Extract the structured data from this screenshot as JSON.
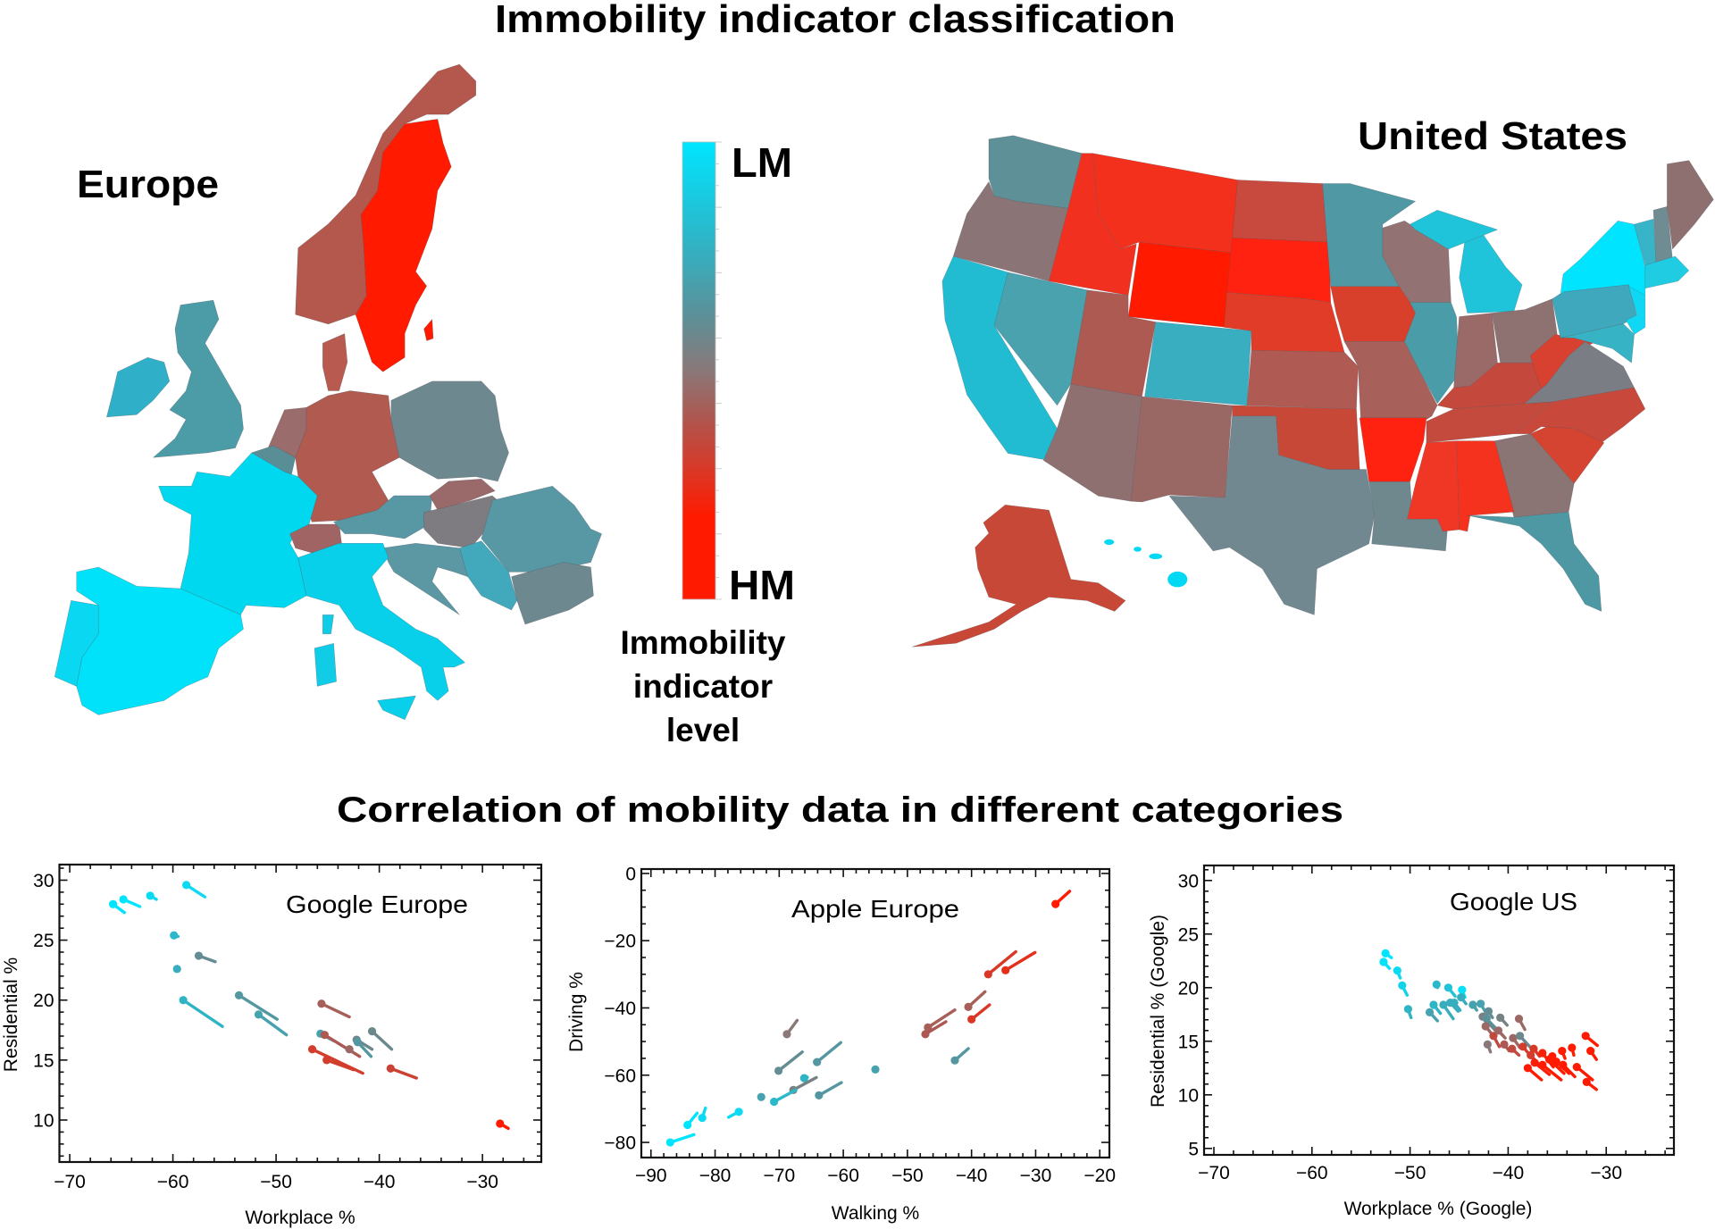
{
  "header": {
    "title": "Immobility indicator classification"
  },
  "maps": {
    "europe_label": "Europe",
    "us_label": "United States"
  },
  "legend": {
    "top_label": "LM",
    "bottom_label": "HM",
    "caption_lines": [
      "Immobility",
      "indicator",
      "level"
    ],
    "colors": [
      "#00e5ff",
      "#2fb4c6",
      "#5c9098",
      "#8a7878",
      "#b4524a",
      "#e2321e",
      "#ff1a00"
    ]
  },
  "section2": {
    "title": "Correlation of mobility data in different categories"
  },
  "chart_data": [
    {
      "type": "scatter",
      "title": "Google Europe",
      "xlabel": "Workplace %",
      "ylabel": "Residential %",
      "xlim": [
        -71,
        -24.3
      ],
      "ylim": [
        6.5,
        31.3
      ],
      "xticks": [
        -70,
        -60,
        -50,
        -40,
        -30
      ],
      "yticks": [
        10,
        15,
        20,
        25,
        30
      ],
      "grid": false,
      "points": [
        {
          "x": -65.8,
          "y": 28.0,
          "x_end": -64.7,
          "y_end": 27.3,
          "level": 0.0
        },
        {
          "x": -64.8,
          "y": 28.4,
          "x_end": -63.2,
          "y_end": 27.8,
          "level": 0.0
        },
        {
          "x": -62.2,
          "y": 28.7,
          "x_end": -61.6,
          "y_end": 28.4,
          "level": 0.05
        },
        {
          "x": -58.7,
          "y": 29.6,
          "x_end": -56.9,
          "y_end": 28.6,
          "level": 0.05
        },
        {
          "x": -59.9,
          "y": 25.4,
          "x_end": -59.5,
          "y_end": 25.3,
          "level": 0.2
        },
        {
          "x": -57.5,
          "y": 23.7,
          "x_end": -55.9,
          "y_end": 23.2,
          "level": 0.4
        },
        {
          "x": -59.6,
          "y": 22.6,
          "x_end": -59.6,
          "y_end": 22.6,
          "level": 0.25
        },
        {
          "x": -59.0,
          "y": 20.0,
          "x_end": -55.2,
          "y_end": 17.8,
          "level": 0.22
        },
        {
          "x": -53.6,
          "y": 20.4,
          "x_end": -49.9,
          "y_end": 18.4,
          "level": 0.35
        },
        {
          "x": -51.7,
          "y": 18.8,
          "x_end": -49.0,
          "y_end": 17.1,
          "level": 0.3
        },
        {
          "x": -45.6,
          "y": 19.7,
          "x_end": -42.9,
          "y_end": 18.6,
          "level": 0.58
        },
        {
          "x": -45.7,
          "y": 17.2,
          "x_end": -44.4,
          "y_end": 16.6,
          "level": 0.3
        },
        {
          "x": -45.3,
          "y": 17.1,
          "x_end": -41.9,
          "y_end": 15.3,
          "level": 0.6
        },
        {
          "x": -42.2,
          "y": 16.7,
          "x_end": -40.7,
          "y_end": 15.9,
          "level": 0.42
        },
        {
          "x": -42.1,
          "y": 16.5,
          "x_end": -40.8,
          "y_end": 15.3,
          "level": 0.35
        },
        {
          "x": -42.9,
          "y": 15.9,
          "x_end": -42.6,
          "y_end": 15.7,
          "level": 0.55
        },
        {
          "x": -40.7,
          "y": 17.4,
          "x_end": -38.8,
          "y_end": 15.9,
          "level": 0.42
        },
        {
          "x": -46.5,
          "y": 15.9,
          "x_end": -41.6,
          "y_end": 13.9,
          "level": 0.7
        },
        {
          "x": -45.1,
          "y": 15.0,
          "x_end": -42.5,
          "y_end": 14.2,
          "level": 0.7
        },
        {
          "x": -38.9,
          "y": 14.3,
          "x_end": -36.4,
          "y_end": 13.5,
          "level": 0.68
        },
        {
          "x": -28.3,
          "y": 9.7,
          "x_end": -27.5,
          "y_end": 9.3,
          "level": 1.0
        }
      ]
    },
    {
      "type": "scatter",
      "title": "Apple Europe",
      "xlabel": "Walking %",
      "ylabel": "Driving %",
      "xlim": [
        -91.5,
        -18.5
      ],
      "ylim": [
        -84.5,
        1.3
      ],
      "xticks": [
        -90,
        -80,
        -70,
        -60,
        -50,
        -40,
        -30,
        -20
      ],
      "yticks": [
        -80,
        -60,
        -40,
        -20,
        0
      ],
      "grid": false,
      "points": [
        {
          "x": -26.9,
          "y": -9.1,
          "x_end": -24.7,
          "y_end": -5.3,
          "level": 1.0
        },
        {
          "x": -37.4,
          "y": -30.0,
          "x_end": -33.1,
          "y_end": -23.3,
          "level": 0.72
        },
        {
          "x": -34.7,
          "y": -28.8,
          "x_end": -30.1,
          "y_end": -23.5,
          "level": 0.75
        },
        {
          "x": -40.5,
          "y": -39.7,
          "x_end": -37.9,
          "y_end": -35.2,
          "level": 0.58
        },
        {
          "x": -40.0,
          "y": -43.4,
          "x_end": -37.2,
          "y_end": -39.1,
          "level": 0.72
        },
        {
          "x": -46.8,
          "y": -45.8,
          "x_end": -42.6,
          "y_end": -40.6,
          "level": 0.58
        },
        {
          "x": -47.2,
          "y": -47.8,
          "x_end": -44.0,
          "y_end": -44.1,
          "level": 0.6
        },
        {
          "x": -42.6,
          "y": -55.6,
          "x_end": -40.5,
          "y_end": -52.1,
          "level": 0.35
        },
        {
          "x": -68.8,
          "y": -47.8,
          "x_end": -67.2,
          "y_end": -43.7,
          "level": 0.5
        },
        {
          "x": -70.1,
          "y": -58.7,
          "x_end": -66.4,
          "y_end": -53.1,
          "level": 0.4
        },
        {
          "x": -64.1,
          "y": -56.1,
          "x_end": -60.4,
          "y_end": -50.3,
          "level": 0.35
        },
        {
          "x": -55.0,
          "y": -58.3,
          "x_end": -55.0,
          "y_end": -58.3,
          "level": 0.3
        },
        {
          "x": -66.1,
          "y": -60.9,
          "x_end": -65.6,
          "y_end": -60.6,
          "level": 0.22
        },
        {
          "x": -67.8,
          "y": -64.4,
          "x_end": -64.2,
          "y_end": -60.7,
          "level": 0.45
        },
        {
          "x": -63.8,
          "y": -66.0,
          "x_end": -60.3,
          "y_end": -62.2,
          "level": 0.35
        },
        {
          "x": -72.8,
          "y": -66.5,
          "x_end": -72.5,
          "y_end": -66.0,
          "level": 0.3
        },
        {
          "x": -70.8,
          "y": -67.9,
          "x_end": -67.4,
          "y_end": -64.4,
          "level": 0.2
        },
        {
          "x": -76.3,
          "y": -70.9,
          "x_end": -77.9,
          "y_end": -72.5,
          "level": 0.05
        },
        {
          "x": -82.0,
          "y": -72.7,
          "x_end": -81.5,
          "y_end": -69.8,
          "level": 0.05
        },
        {
          "x": -84.3,
          "y": -74.8,
          "x_end": -82.8,
          "y_end": -71.3,
          "level": 0.0
        },
        {
          "x": -87.0,
          "y": -80.0,
          "x_end": -83.3,
          "y_end": -77.7,
          "level": 0.0
        }
      ]
    },
    {
      "type": "scatter",
      "title": "Google US",
      "xlabel": "Workplace % (Google)",
      "ylabel": "Residential % (Google)",
      "xlim": [
        -71,
        -23.1
      ],
      "ylim": [
        4.4,
        31.4
      ],
      "xticks": [
        -70,
        -60,
        -50,
        -40,
        -30
      ],
      "yticks": [
        5,
        10,
        15,
        20,
        25,
        30
      ],
      "grid": false,
      "points": [
        {
          "x": -52.5,
          "y": 23.2,
          "x_end": -51.9,
          "y_end": 22.8,
          "level": 0.0
        },
        {
          "x": -52.7,
          "y": 22.4,
          "x_end": -52.1,
          "y_end": 21.8,
          "level": 0.02
        },
        {
          "x": -51.3,
          "y": 21.6,
          "x_end": -51.0,
          "y_end": 20.9,
          "level": 0.05
        },
        {
          "x": -50.8,
          "y": 20.2,
          "x_end": -50.3,
          "y_end": 19.3,
          "level": 0.08
        },
        {
          "x": -50.2,
          "y": 18.0,
          "x_end": -49.9,
          "y_end": 17.2,
          "level": 0.22
        },
        {
          "x": -47.3,
          "y": 20.3,
          "x_end": -47.2,
          "y_end": 20.0,
          "level": 0.2
        },
        {
          "x": -46.1,
          "y": 20.0,
          "x_end": -45.4,
          "y_end": 19.2,
          "level": 0.15
        },
        {
          "x": -44.7,
          "y": 19.8,
          "x_end": -44.4,
          "y_end": 19.1,
          "level": 0.02
        },
        {
          "x": -44.8,
          "y": 19.1,
          "x_end": -44.3,
          "y_end": 18.5,
          "level": 0.25
        },
        {
          "x": -48.0,
          "y": 17.7,
          "x_end": -47.2,
          "y_end": 16.9,
          "level": 0.3
        },
        {
          "x": -47.6,
          "y": 18.4,
          "x_end": -46.9,
          "y_end": 17.6,
          "level": 0.22
        },
        {
          "x": -46.6,
          "y": 18.4,
          "x_end": -45.6,
          "y_end": 17.1,
          "level": 0.25
        },
        {
          "x": -45.9,
          "y": 18.6,
          "x_end": -45.1,
          "y_end": 17.8,
          "level": 0.25
        },
        {
          "x": -45.5,
          "y": 18.6,
          "x_end": -44.9,
          "y_end": 17.9,
          "level": 0.25
        },
        {
          "x": -43.6,
          "y": 18.4,
          "x_end": -43.2,
          "y_end": 17.9,
          "level": 0.3
        },
        {
          "x": -42.8,
          "y": 18.5,
          "x_end": -42.3,
          "y_end": 17.7,
          "level": 0.3
        },
        {
          "x": -42.0,
          "y": 17.8,
          "x_end": -41.6,
          "y_end": 17.2,
          "level": 0.4
        },
        {
          "x": -42.6,
          "y": 17.3,
          "x_end": -41.2,
          "y_end": 15.9,
          "level": 0.45
        },
        {
          "x": -42.2,
          "y": 17.1,
          "x_end": -40.5,
          "y_end": 15.5,
          "level": 0.38
        },
        {
          "x": -40.8,
          "y": 17.2,
          "x_end": -40.1,
          "y_end": 16.5,
          "level": 0.45
        },
        {
          "x": -42.3,
          "y": 16.4,
          "x_end": -41.6,
          "y_end": 15.6,
          "level": 0.55
        },
        {
          "x": -38.9,
          "y": 17.1,
          "x_end": -38.3,
          "y_end": 16.1,
          "level": 0.55
        },
        {
          "x": -41.5,
          "y": 15.5,
          "x_end": -40.9,
          "y_end": 14.5,
          "level": 0.65
        },
        {
          "x": -41.0,
          "y": 16.0,
          "x_end": -40.3,
          "y_end": 15.3,
          "level": 0.55
        },
        {
          "x": -39.5,
          "y": 15.3,
          "x_end": -38.8,
          "y_end": 14.4,
          "level": 0.55
        },
        {
          "x": -38.8,
          "y": 15.5,
          "x_end": -37.7,
          "y_end": 14.4,
          "level": 0.42
        },
        {
          "x": -42.1,
          "y": 14.7,
          "x_end": -41.8,
          "y_end": 14.0,
          "level": 0.5
        },
        {
          "x": -40.4,
          "y": 14.7,
          "x_end": -39.9,
          "y_end": 14.1,
          "level": 0.6
        },
        {
          "x": -39.6,
          "y": 14.3,
          "x_end": -38.9,
          "y_end": 13.7,
          "level": 0.65
        },
        {
          "x": -38.5,
          "y": 14.5,
          "x_end": -37.5,
          "y_end": 13.4,
          "level": 0.7
        },
        {
          "x": -37.4,
          "y": 14.3,
          "x_end": -36.8,
          "y_end": 13.6,
          "level": 0.72
        },
        {
          "x": -37.7,
          "y": 13.7,
          "x_end": -37.0,
          "y_end": 13.0,
          "level": 0.7
        },
        {
          "x": -36.5,
          "y": 13.9,
          "x_end": -35.4,
          "y_end": 12.6,
          "level": 0.8
        },
        {
          "x": -35.5,
          "y": 13.6,
          "x_end": -34.5,
          "y_end": 12.6,
          "level": 0.82
        },
        {
          "x": -34.5,
          "y": 14.1,
          "x_end": -34.2,
          "y_end": 13.4,
          "level": 0.85
        },
        {
          "x": -33.5,
          "y": 14.4,
          "x_end": -33.3,
          "y_end": 13.7,
          "level": 0.85
        },
        {
          "x": -37.3,
          "y": 13.0,
          "x_end": -35.8,
          "y_end": 11.9,
          "level": 0.8
        },
        {
          "x": -36.5,
          "y": 12.8,
          "x_end": -34.6,
          "y_end": 11.4,
          "level": 0.82
        },
        {
          "x": -35.8,
          "y": 13.3,
          "x_end": -34.3,
          "y_end": 12.0,
          "level": 0.85
        },
        {
          "x": -35.1,
          "y": 13.1,
          "x_end": -33.8,
          "y_end": 12.0,
          "level": 0.85
        },
        {
          "x": -34.4,
          "y": 12.8,
          "x_end": -33.2,
          "y_end": 11.7,
          "level": 0.9
        },
        {
          "x": -38.0,
          "y": 12.5,
          "x_end": -36.6,
          "y_end": 11.4,
          "level": 0.95
        },
        {
          "x": -33.0,
          "y": 12.6,
          "x_end": -31.4,
          "y_end": 11.4,
          "level": 0.95
        },
        {
          "x": -32.1,
          "y": 15.5,
          "x_end": -30.9,
          "y_end": 14.6,
          "level": 0.85
        },
        {
          "x": -31.6,
          "y": 14.1,
          "x_end": -31.0,
          "y_end": 13.3,
          "level": 0.95
        },
        {
          "x": -32.0,
          "y": 11.2,
          "x_end": -31.0,
          "y_end": 10.5,
          "level": 1.0
        }
      ]
    }
  ]
}
